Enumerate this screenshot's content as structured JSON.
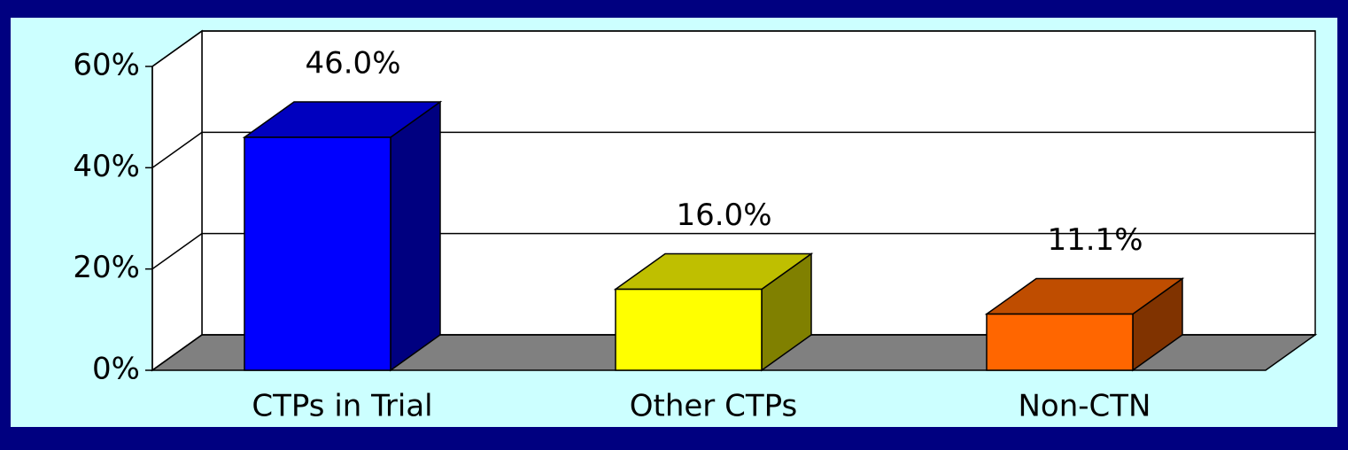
{
  "chart_data": {
    "type": "bar3d",
    "categories": [
      "CTPs in Trial",
      "Other CTPs",
      "Non-CTN"
    ],
    "values": [
      46,
      16,
      11.1
    ],
    "value_labels": [
      "46.0%",
      "16.0%",
      "11.1%"
    ],
    "colors": [
      "#0000ff",
      "#ffff00",
      "#ff6600"
    ],
    "ylim": [
      0,
      60
    ],
    "yticks": [
      {
        "value": 0,
        "label": "0%"
      },
      {
        "value": 20,
        "label": "20%"
      },
      {
        "value": 40,
        "label": "40%"
      },
      {
        "value": 60,
        "label": "60%"
      }
    ],
    "grid": true
  }
}
